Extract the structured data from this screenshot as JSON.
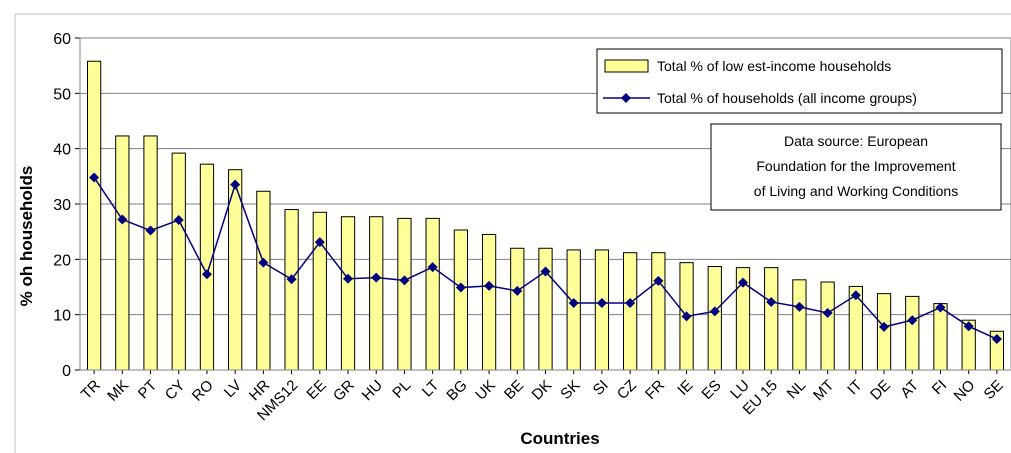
{
  "chart_data": {
    "type": "bar",
    "xlabel": "Countries",
    "ylabel": "% oh households",
    "ylim": [
      0,
      60
    ],
    "yticks": [
      0,
      10,
      20,
      30,
      40,
      50,
      60
    ],
    "grid": true,
    "legend_position": "top-right",
    "categories": [
      "TR",
      "MK",
      "PT",
      "CY",
      "RO",
      "LV",
      "HR",
      "NMS12",
      "EE",
      "GR",
      "HU",
      "PL",
      "LT",
      "BG",
      "UK",
      "BE",
      "DK",
      "SK",
      "SI",
      "CZ",
      "FR",
      "IE",
      "ES",
      "LU",
      "EU 15",
      "NL",
      "MT",
      "IT",
      "DE",
      "AT",
      "FI",
      "NO",
      "SE"
    ],
    "series": [
      {
        "name": "Total % of low est-income households",
        "kind": "bar",
        "color": "#ffff99",
        "values": [
          55.8,
          42.3,
          42.3,
          39.2,
          37.2,
          36.2,
          32.3,
          29.0,
          28.5,
          27.7,
          27.7,
          27.4,
          27.4,
          25.3,
          24.5,
          22.0,
          22.0,
          21.7,
          21.7,
          21.2,
          21.2,
          19.4,
          18.7,
          18.5,
          18.5,
          16.3,
          15.9,
          15.1,
          13.8,
          13.3,
          12.0,
          9.0,
          7.0
        ]
      },
      {
        "name": "Total % of households (all income groups)",
        "kind": "line",
        "color": "#000080",
        "values": [
          34.8,
          27.2,
          25.2,
          27.1,
          17.3,
          33.5,
          19.4,
          16.4,
          23.1,
          16.5,
          16.7,
          16.2,
          18.6,
          14.9,
          15.2,
          14.3,
          17.8,
          12.1,
          12.1,
          12.1,
          16.1,
          9.7,
          10.6,
          15.8,
          12.3,
          11.4,
          10.3,
          13.5,
          7.8,
          9.0,
          11.3,
          7.9,
          5.6
        ]
      }
    ],
    "annotation": [
      "Data source: European",
      "Foundation for the Improvement",
      "of Living and Working Conditions"
    ]
  }
}
